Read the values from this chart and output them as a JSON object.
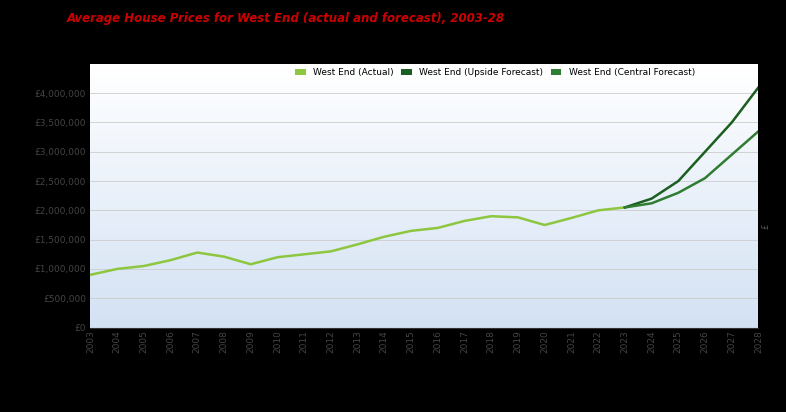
{
  "title": "Average House Prices for West End (actual and forecast), 2003-28",
  "title_color": "#cc0000",
  "years": [
    2003,
    2004,
    2005,
    2006,
    2007,
    2008,
    2009,
    2010,
    2011,
    2012,
    2013,
    2014,
    2015,
    2016,
    2017,
    2018,
    2019,
    2020,
    2021,
    2022,
    2023,
    2024,
    2025,
    2026,
    2027,
    2028
  ],
  "actual": [
    900000,
    1000000,
    1050000,
    1150000,
    1280000,
    1210000,
    1080000,
    1200000,
    1250000,
    1300000,
    1420000,
    1550000,
    1650000,
    1700000,
    1820000,
    1900000,
    1880000,
    1750000,
    1870000,
    2000000,
    2050000,
    null,
    null,
    null,
    null,
    null
  ],
  "upside": [
    null,
    null,
    null,
    null,
    null,
    null,
    null,
    null,
    null,
    null,
    null,
    null,
    null,
    null,
    null,
    null,
    null,
    null,
    null,
    null,
    2050000,
    2200000,
    2500000,
    3000000,
    3500000,
    4100000
  ],
  "central": [
    null,
    null,
    null,
    null,
    null,
    null,
    null,
    null,
    null,
    null,
    null,
    null,
    null,
    null,
    null,
    null,
    null,
    null,
    null,
    null,
    2050000,
    2120000,
    2300000,
    2550000,
    2950000,
    3350000
  ],
  "actual_color": "#8dc63f",
  "upside_color": "#1a5e20",
  "central_color": "#2e7d32",
  "ylim": [
    0,
    4500000
  ],
  "yticks": [
    0,
    500000,
    1000000,
    1500000,
    2000000,
    2500000,
    3000000,
    3500000,
    4000000
  ],
  "ytick_labels": [
    "£0",
    "£500,000",
    "£1,000,000",
    "£1,500,000",
    "£2,000,000",
    "£2,500,000",
    "£3,000,000",
    "£3,500,000",
    "£4,000,000"
  ],
  "legend_labels": [
    "West End (Actual)",
    "West End (Upside Forecast)",
    "West End (Central Forecast)"
  ],
  "legend_colors": [
    "#8dc63f",
    "#1a5e20",
    "#2e7d32"
  ],
  "grid_color": "#cccccc",
  "linewidth": 1.8,
  "figsize": [
    7.86,
    4.12
  ],
  "dpi": 100,
  "outer_bg": "#000000",
  "right_label": "£"
}
